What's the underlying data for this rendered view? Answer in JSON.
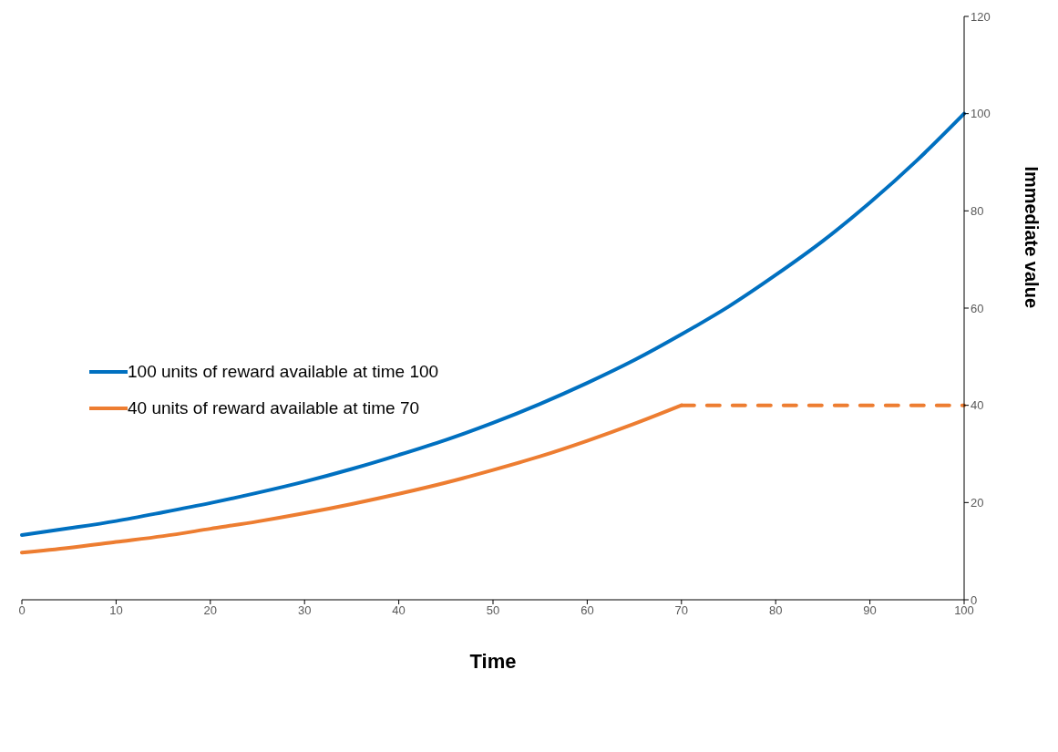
{
  "chart_data": {
    "type": "line",
    "xlabel": "Time",
    "ylabel": "Immediate value",
    "xlim": [
      0,
      100
    ],
    "xticks": [
      0,
      10,
      20,
      30,
      40,
      50,
      60,
      70,
      80,
      90,
      100
    ],
    "ylim": [
      0,
      120
    ],
    "yticks": [
      0,
      20,
      40,
      60,
      80,
      100,
      120
    ],
    "grid": false,
    "legend": "left",
    "marker": "none",
    "series": [
      {
        "name": "100 units of reward available at time 100",
        "color": "#0070c0",
        "line_style": "solid",
        "x": [
          0,
          5,
          10,
          15,
          20,
          25,
          30,
          35,
          40,
          45,
          50,
          55,
          60,
          65,
          70,
          75,
          80,
          85,
          90,
          95,
          100
        ],
        "values": [
          13.3,
          14.7,
          16.2,
          18.0,
          19.9,
          22.0,
          24.3,
          26.9,
          29.8,
          32.9,
          36.4,
          40.3,
          44.6,
          49.3,
          54.6,
          60.3,
          66.8,
          73.8,
          81.7,
          90.4,
          100
        ]
      },
      {
        "name": "40 units of reward available at time 70",
        "color": "#ed7d31",
        "line_style": "solid",
        "x": [
          0,
          5,
          10,
          15,
          20,
          25,
          30,
          35,
          40,
          45,
          50,
          55,
          60,
          65,
          70
        ],
        "values": [
          9.7,
          10.7,
          11.9,
          13.1,
          14.6,
          16.1,
          17.8,
          19.7,
          21.8,
          24.1,
          26.7,
          29.5,
          32.7,
          36.2,
          40
        ]
      },
      {
        "color": "#ed7d31",
        "line_style": "dashed",
        "x": [
          70,
          100
        ],
        "values": [
          40,
          40
        ]
      }
    ]
  }
}
